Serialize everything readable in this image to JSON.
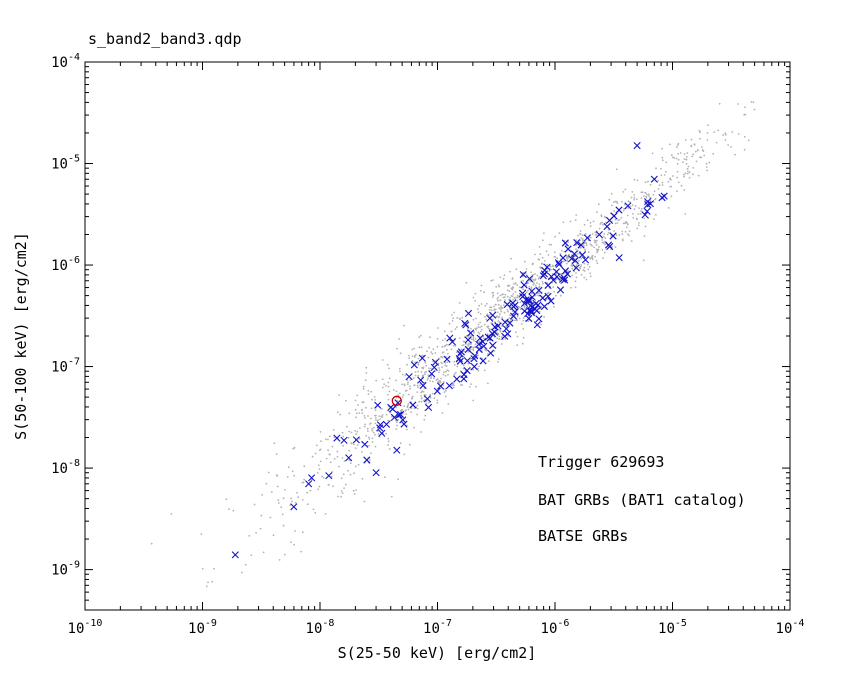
{
  "window": {
    "title": "s_band2_band3.qdp"
  },
  "chart_data": {
    "type": "scatter",
    "title": "s_band2_band3.qdp",
    "xlabel": "S(25-50 keV) [erg/cm2]",
    "ylabel": "S(50-100 keV) [erg/cm2]",
    "x_scale": "log",
    "y_scale": "log",
    "xlim": [
      1e-10,
      0.0001
    ],
    "ylim": [
      4e-10,
      0.0001
    ],
    "x_tick_exponents": [
      -10,
      -9,
      -8,
      -7,
      -6,
      -5,
      -4
    ],
    "y_tick_exponents": [
      -9,
      -8,
      -7,
      -6,
      -5,
      -4
    ],
    "grid": false,
    "legend_position": "inside-bottom-right",
    "legend": [
      {
        "label": "Trigger 629693",
        "color": "#cc0000",
        "marker": "circle-open"
      },
      {
        "label": "BAT GRBs (BAT1 catalog)",
        "color": "#1414cc",
        "marker": "x"
      },
      {
        "label": "BATSE GRBs",
        "color": "#b3b3b3",
        "marker": "dot"
      }
    ],
    "series": [
      {
        "name": "BATSE GRBs",
        "marker": "dot",
        "color": "#b3b3b3",
        "generator": {
          "seed": 20240,
          "count": 1500,
          "logx_mean": -6.45,
          "logx_sd": 0.95,
          "logx_min": -9.55,
          "logx_max": -4.3,
          "slope": 0.95,
          "intercept": -0.38,
          "sigma_base": 0.15,
          "sigma_faint_slope": 0.07
        },
        "points": []
      },
      {
        "name": "BAT GRBs (BAT1 catalog)",
        "marker": "x",
        "color": "#1414cc",
        "generator": {
          "seed": 777,
          "count": 160,
          "logx_mean": -6.3,
          "logx_sd": 0.72,
          "logx_min": -8.85,
          "logx_max": -5.05,
          "slope": 0.98,
          "intercept": -0.25,
          "sigma_base": 0.12,
          "sigma_faint_slope": 0.03
        },
        "points": [
          [
            1.9e-09,
            1.4e-09
          ],
          [
            8e-09,
            7e-09
          ],
          [
            3e-08,
            9e-09
          ],
          [
            4.5e-08,
            1.5e-08
          ],
          [
            2.5e-08,
            1.2e-08
          ],
          [
            5e-06,
            1.5e-05
          ],
          [
            4.6e-08,
            4.4e-08
          ],
          [
            7e-06,
            7e-06
          ]
        ]
      },
      {
        "name": "Trigger 629693",
        "marker": "circle-open",
        "color": "#cc0000",
        "points": [
          [
            4.5e-08,
            4.6e-08
          ]
        ]
      }
    ]
  }
}
